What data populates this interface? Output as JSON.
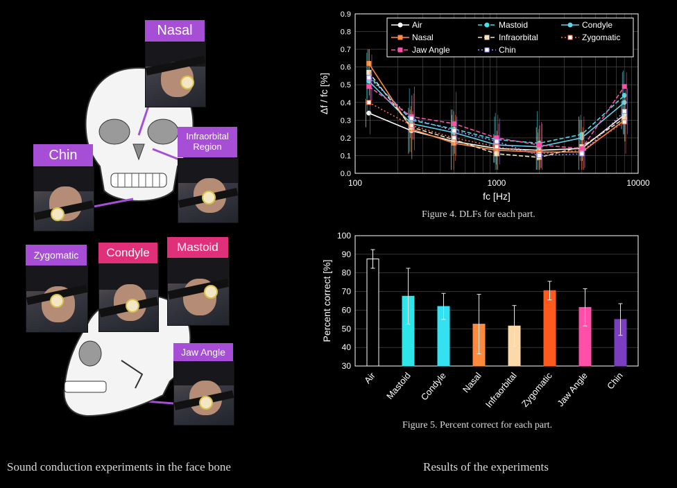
{
  "left_panel": {
    "caption": "Sound conduction experiments in the face bone",
    "tags": {
      "nasal": "Nasal",
      "infraorbital": "Infraorbital Region",
      "chin": "Chin",
      "zygomatic": "Zygomatic",
      "condyle": "Condyle",
      "mastoid": "Mastoid",
      "jaw_angle": "Jaw Angle"
    },
    "colors": {
      "purple_tag": "#a64fd6",
      "pink_tag": "#e0307a"
    }
  },
  "right_panel": {
    "caption": "Results of  the experiments"
  },
  "chart_data": [
    {
      "type": "line",
      "figure_caption": "Figure 4. DLFs for each part.",
      "xlabel": "fc [Hz]",
      "ylabel": "Δf / fc [%]",
      "x_scale": "log",
      "xlim": [
        100,
        10000
      ],
      "ylim": [
        0,
        0.9
      ],
      "x_ticks": [
        100,
        1000,
        10000
      ],
      "y_ticks": [
        0,
        0.1,
        0.2,
        0.3,
        0.4,
        0.5,
        0.6,
        0.7,
        0.8,
        0.9
      ],
      "grid": true,
      "legend": "top",
      "x": [
        125,
        250,
        500,
        1000,
        2000,
        4000,
        8000
      ],
      "series": [
        {
          "name": "Air",
          "color": "#ffffff",
          "dash": "solid",
          "marker": "circle-open",
          "values": [
            0.34,
            0.24,
            0.18,
            0.14,
            0.13,
            0.14,
            0.33
          ]
        },
        {
          "name": "Mastoid",
          "color": "#40e0e8",
          "dash": "dash",
          "marker": "circle",
          "values": [
            0.55,
            0.3,
            0.25,
            0.19,
            0.17,
            0.22,
            0.44
          ]
        },
        {
          "name": "Condyle",
          "color": "#5fd3ea",
          "dash": "solid",
          "marker": "circle",
          "values": [
            0.52,
            0.28,
            0.23,
            0.16,
            0.15,
            0.2,
            0.4
          ]
        },
        {
          "name": "Nasal",
          "color": "#ff8a3d",
          "dash": "solid",
          "marker": "square",
          "values": [
            0.62,
            0.25,
            0.17,
            0.13,
            0.12,
            0.12,
            0.3
          ]
        },
        {
          "name": "Infraorbital",
          "color": "#f5e2b8",
          "dash": "dash",
          "marker": "square",
          "values": [
            0.57,
            0.26,
            0.19,
            0.11,
            0.09,
            0.15,
            0.31
          ]
        },
        {
          "name": "Zygomatic",
          "color": "#ff6a3d",
          "dash": "dot",
          "marker": "square-open",
          "values": [
            0.4,
            0.27,
            0.2,
            0.15,
            0.11,
            0.13,
            0.29
          ]
        },
        {
          "name": "Jaw Angle",
          "color": "#ff4fa8",
          "dash": "dash",
          "marker": "square",
          "values": [
            0.49,
            0.32,
            0.28,
            0.2,
            0.16,
            0.14,
            0.49
          ]
        },
        {
          "name": "Chin",
          "color": "#a58bff",
          "dash": "dot",
          "marker": "square-open",
          "values": [
            0.54,
            0.31,
            0.24,
            0.18,
            0.1,
            0.11,
            0.35
          ]
        }
      ]
    },
    {
      "type": "bar",
      "figure_caption": "Figure 5. Percent correct for each part.",
      "ylabel": "Percent correct [%]",
      "xlabel": "",
      "ylim": [
        30,
        100
      ],
      "y_ticks": [
        30,
        40,
        50,
        60,
        70,
        80,
        90,
        100
      ],
      "grid": true,
      "categories": [
        "Air",
        "Mastoid",
        "Condyle",
        "Nasal",
        "Infraorbital",
        "Zygomatic",
        "Jaw Angle",
        "Chin"
      ],
      "values": [
        87.5,
        67.5,
        62,
        52.5,
        51.5,
        70.5,
        61.5,
        55
      ],
      "error": [
        5,
        15,
        7,
        16,
        11,
        5,
        10,
        8.5
      ],
      "colors": [
        "#000000",
        "#2ee6ea",
        "#35e0f0",
        "#ff8a3d",
        "#fbd9a8",
        "#ff5a1e",
        "#ff4fa8",
        "#7a3fc0"
      ]
    }
  ]
}
